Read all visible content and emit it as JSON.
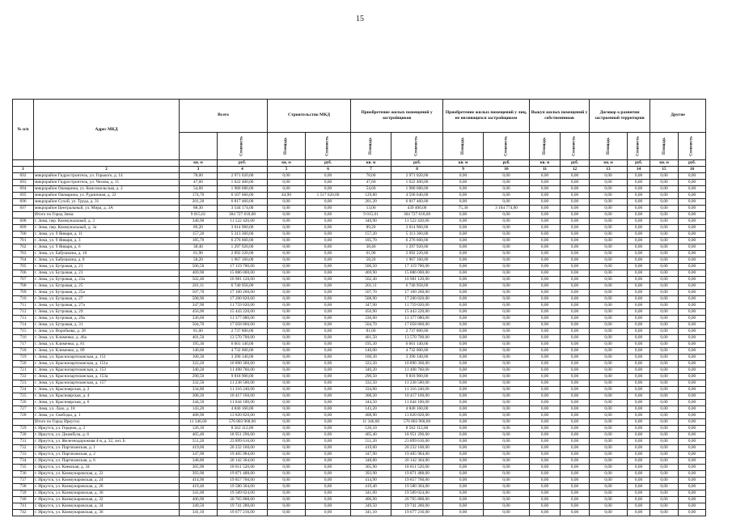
{
  "page_number": "15",
  "header": {
    "num": "№ п/п",
    "address": "Адрес МКД",
    "groups": [
      "Всего",
      "Строительство МКД",
      "Приобретение жилых помещений у застройщиков",
      "Приобретение жилых помещений у лиц, не являющихся застройщиком",
      "Выкуп жилых помещений у собственников",
      "Договор о развитии застроенной территории",
      "Другие"
    ],
    "sub": [
      "Расселяемая площадь жилых помещений",
      "Стоимость",
      "Площадь",
      "Стоимость",
      "Площадь",
      "Стоимость",
      "Площадь",
      "Стоимость",
      "Площадь",
      "Стоимость",
      "Площадь",
      "Стоимость",
      "Площадь",
      "Стоимость"
    ],
    "units": [
      "кв. м",
      "руб.",
      "кв. м",
      "руб.",
      "кв. м",
      "руб.",
      "кв. м",
      "руб.",
      "кв. м",
      "руб.",
      "кв. м",
      "руб.",
      "кв. м",
      "руб."
    ],
    "index": [
      "1",
      "2",
      "3",
      "4",
      "5",
      "6",
      "7",
      "8",
      "9",
      "10",
      "11",
      "12",
      "13",
      "14",
      "15",
      "16"
    ]
  },
  "table": {
    "rows": [
      [
        "692",
        "микрорайон Гидростроитель, ул. Горького, д. 14",
        "78,00",
        "2 971 020,00",
        "0,00",
        "0,00",
        "78,00",
        "2 971 020,00",
        "0,00",
        "0,00",
        "0,00",
        "0,00",
        "0,00",
        "0,00",
        "0,00",
        "0,00"
      ],
      [
        "693",
        "микрорайон Гидростроитель, ул. Чехова, д. 11",
        "47,60",
        "1 622 400,00",
        "0,00",
        "0,00",
        "47,60",
        "1 622 400,00",
        "0,00",
        "0,00",
        "0,00",
        "0,00",
        "0,00",
        "0,00",
        "0,00",
        "0,00"
      ],
      [
        "694",
        "микрорайон Ошмарина, ул. Комсомольская, д. 2",
        "54,60",
        "1 980 680,00",
        "0,00",
        "0,00",
        "54,60",
        "1 980 680,00",
        "0,00",
        "0,00",
        "0,00",
        "0,00",
        "0,00",
        "0,00",
        "0,00",
        "0,00"
      ],
      [
        "695",
        "микрорайон Ошмарина, ул. Рудничная, д. 22",
        "174,70",
        "6 107 660,00",
        "44,90",
        "1 517 620,00",
        "129,80",
        "4 590 040,00",
        "0,00",
        "0,00",
        "0,00",
        "0,00",
        "0,00",
        "0,00",
        "0,00",
        "0,00"
      ],
      [
        "696",
        "микрорайон Сухой, ул. Труда, д. 31",
        "201,20",
        "6 817 460,00",
        "0,00",
        "0,00",
        "201,20",
        "6 817 460,00",
        "0,00",
        "0,00",
        "0,00",
        "0,00",
        "0,00",
        "0,00",
        "0,00",
        "0,00"
      ],
      [
        "697",
        "микрорайон Центральный, ул. Мира, д. 3А",
        "88,30",
        "3 544 174,00",
        "0,00",
        "0,00",
        "13,00",
        "439 400,00",
        "75,30",
        "3 104 774,00",
        "0,00",
        "0,00",
        "0,00",
        "0,00",
        "0,00",
        "0,00"
      ],
      [
        "",
        "Итого по Город Зима:",
        "9 015,61",
        "304 727 618,00",
        "0,00",
        "0,00",
        "9 015,61",
        "304 727 618,00",
        "0,00",
        "0,00",
        "0,00",
        "0,00",
        "0,00",
        "0,00",
        "0,00",
        "0,00"
      ],
      [
        "698",
        "г. Зима, пер. Коммунальный, д. 3",
        "340,90",
        "11 522 420,00",
        "0,00",
        "0,00",
        "340,90",
        "11 522 420,00",
        "0,00",
        "0,00",
        "0,00",
        "0,00",
        "0,00",
        "0,00",
        "0,00",
        "0,00"
      ],
      [
        "699",
        "г. Зима, пер. Коммунальный, д. 3а",
        "89,20",
        "3 014 960,00",
        "0,00",
        "0,00",
        "89,20",
        "3 014 960,00",
        "0,00",
        "0,00",
        "0,00",
        "0,00",
        "0,00",
        "0,00",
        "0,00",
        "0,00"
      ],
      [
        "700",
        "г. Зима, ул. 9 Января, д. 11",
        "157,20",
        "5 313 360,00",
        "0,00",
        "0,00",
        "157,20",
        "5 313 360,00",
        "0,00",
        "0,00",
        "0,00",
        "0,00",
        "0,00",
        "0,00",
        "0,00",
        "0,00"
      ],
      [
        "701",
        "г. Зима, ул. 9 Января, д. 3",
        "185,70",
        "6 276 660,00",
        "0,00",
        "0,00",
        "185,70",
        "6 276 660,00",
        "0,00",
        "0,00",
        "0,00",
        "0,00",
        "0,00",
        "0,00",
        "0,00",
        "0,00"
      ],
      [
        "702",
        "г. Зима, ул. 9 Января, д. 6",
        "38,40",
        "1 297 920,00",
        "0,00",
        "0,00",
        "38,40",
        "1 297 920,00",
        "0,00",
        "0,00",
        "0,00",
        "0,00",
        "0,00",
        "0,00",
        "0,00",
        "0,00"
      ],
      [
        "703",
        "г. Зима, ул. Бабушкина, д. 10",
        "61,90",
        "2 092 220,00",
        "0,00",
        "0,00",
        "61,90",
        "2 092 220,00",
        "0,00",
        "0,00",
        "0,00",
        "0,00",
        "0,00",
        "0,00",
        "0,00",
        "0,00"
      ],
      [
        "704",
        "г. Зима, ул. Бабушкина, д. 8",
        "58,20",
        "1 967 160,00",
        "0,00",
        "0,00",
        "58,20",
        "1 967 160,00",
        "0,00",
        "0,00",
        "0,00",
        "0,00",
        "0,00",
        "0,00",
        "0,00",
        "0,00"
      ],
      [
        "705",
        "г. Зима, ул. Бутровая, д. 21",
        "506,50",
        "17 119 700,00",
        "0,00",
        "0,00",
        "506,50",
        "17 119 700,00",
        "0,00",
        "0,00",
        "0,00",
        "0,00",
        "0,00",
        "0,00",
        "0,00",
        "0,00"
      ],
      [
        "706",
        "г. Зима, ул. Бутровая, д. 23",
        "469,90",
        "15 886 000,00",
        "0,00",
        "0,00",
        "469,90",
        "15 886 000,00",
        "0,00",
        "0,00",
        "0,00",
        "0,00",
        "0,00",
        "0,00",
        "0,00",
        "0,00"
      ],
      [
        "707",
        "г. Зима, ул. Бутровая, д. 23а",
        "502,40",
        "16 981 120,00",
        "0,00",
        "0,00",
        "502,40",
        "16 981 120,00",
        "0,00",
        "0,00",
        "0,00",
        "0,00",
        "0,00",
        "0,00",
        "0,00",
        "0,00"
      ],
      [
        "708",
        "г. Зима, ул. Бутровая, д. 25",
        "201,11",
        "6 740 958,00",
        "0,00",
        "0,00",
        "201,11",
        "6 740 958,00",
        "0,00",
        "0,00",
        "0,00",
        "0,00",
        "0,00",
        "0,00",
        "0,00",
        "0,00"
      ],
      [
        "709",
        "г. Зима, ул. Бутровая, д. 25а",
        "507,70",
        "17 160 260,00",
        "0,00",
        "0,00",
        "507,70",
        "17 160 260,00",
        "0,00",
        "0,00",
        "0,00",
        "0,00",
        "0,00",
        "0,00",
        "0,00",
        "0,00"
      ],
      [
        "710",
        "г. Зима, ул. Бутровая, д. 27",
        "508,90",
        "17 200 820,00",
        "0,00",
        "0,00",
        "508,90",
        "17 200 820,00",
        "0,00",
        "0,00",
        "0,00",
        "0,00",
        "0,00",
        "0,00",
        "0,00",
        "0,00"
      ],
      [
        "711",
        "г. Зима, ул. Бутровая, д. 27а",
        "347,90",
        "11 759 020,00",
        "0,00",
        "0,00",
        "347,90",
        "11 759 020,00",
        "0,00",
        "0,00",
        "0,00",
        "0,00",
        "0,00",
        "0,00",
        "0,00",
        "0,00"
      ],
      [
        "712",
        "г. Зима, ул. Бутровая, д. 29",
        "456,90",
        "15 443 220,00",
        "0,00",
        "0,00",
        "456,90",
        "15 443 220,00",
        "0,00",
        "0,00",
        "0,00",
        "0,00",
        "0,00",
        "0,00",
        "0,00",
        "0,00"
      ],
      [
        "713",
        "г. Зима, ул. Бутровая, д. 29а",
        "336,60",
        "11 377 080,00",
        "0,00",
        "0,00",
        "336,60",
        "11 377 080,00",
        "0,00",
        "0,00",
        "0,00",
        "0,00",
        "0,00",
        "0,00",
        "0,00",
        "0,00"
      ],
      [
        "714",
        "г. Зима, ул. Бутровая, д. 31",
        "504,70",
        "17 058 860,00",
        "0,00",
        "0,00",
        "504,70",
        "17 058 860,00",
        "0,00",
        "0,00",
        "0,00",
        "0,00",
        "0,00",
        "0,00",
        "0,00",
        "0,00"
      ],
      [
        "715",
        "г. Зима, ул. Воробьева, д. 28",
        "81,00",
        "2 737 800,00",
        "0,00",
        "0,00",
        "81,00",
        "2 737 800,00",
        "0,00",
        "0,00",
        "0,00",
        "0,00",
        "0,00",
        "0,00",
        "0,00",
        "0,00"
      ],
      [
        "716",
        "г. Зима, ул. Клименко, д. 46а",
        "401,50",
        "13 570 700,00",
        "0,00",
        "0,00",
        "401,50",
        "13 570 700,00",
        "0,00",
        "0,00",
        "0,00",
        "0,00",
        "0,00",
        "0,00",
        "0,00",
        "0,00"
      ],
      [
        "717",
        "г. Зима, ул. Клименко, д. 81",
        "195,30",
        "6 601 140,00",
        "0,00",
        "0,00",
        "195,30",
        "6 601 140,00",
        "0,00",
        "0,00",
        "0,00",
        "0,00",
        "0,00",
        "0,00",
        "0,00",
        "0,00"
      ],
      [
        "718",
        "г. Зима, ул. Клименко, д. 89",
        "140,00",
        "4 732 000,00",
        "0,00",
        "0,00",
        "140,00",
        "4 732 000,00",
        "0,00",
        "0,00",
        "0,00",
        "0,00",
        "0,00",
        "0,00",
        "0,00",
        "0,00"
      ],
      [
        "719",
        "г. Зима, ул. Краснопартизанская, д. 151",
        "100,30",
        "3 390 140,00",
        "0,00",
        "0,00",
        "100,30",
        "3 390 140,00",
        "0,00",
        "0,00",
        "0,00",
        "0,00",
        "0,00",
        "0,00",
        "0,00",
        "0,00"
      ],
      [
        "720",
        "г. Зима, ул. Краснопартизанская, д. 151а",
        "322,20",
        "10 890 360,00",
        "0,00",
        "0,00",
        "322,20",
        "10 890 360,00",
        "0,00",
        "0,00",
        "0,00",
        "0,00",
        "0,00",
        "0,00",
        "0,00",
        "0,00"
      ],
      [
        "721",
        "г. Зима, ул. Краснопартизанская, д. 153",
        "340,20",
        "11 498 760,00",
        "0,00",
        "0,00",
        "340,20",
        "11 498 760,00",
        "0,00",
        "0,00",
        "0,00",
        "0,00",
        "0,00",
        "0,00",
        "0,00",
        "0,00"
      ],
      [
        "722",
        "г. Зима, ул. Краснопартизанская, д. 153а",
        "290,50",
        "9 818 900,00",
        "0,00",
        "0,00",
        "290,50",
        "9 818 900,00",
        "0,00",
        "0,00",
        "0,00",
        "0,00",
        "0,00",
        "0,00",
        "0,00",
        "0,00"
      ],
      [
        "723",
        "г. Зима, ул. Краснопартизанская, д. 157",
        "332,50",
        "11 238 500,00",
        "0,00",
        "0,00",
        "332,50",
        "11 238 500,00",
        "0,00",
        "0,00",
        "0,00",
        "0,00",
        "0,00",
        "0,00",
        "0,00",
        "0,00"
      ],
      [
        "724",
        "г. Зима, ул. Красноярская, д. 2",
        "334,80",
        "11 316 240,00",
        "0,00",
        "0,00",
        "334,80",
        "11 316 240,00",
        "0,00",
        "0,00",
        "0,00",
        "0,00",
        "0,00",
        "0,00",
        "0,00",
        "0,00"
      ],
      [
        "725",
        "г. Зима, ул. Красноярская, д. 4",
        "308,20",
        "10 417 160,00",
        "0,00",
        "0,00",
        "308,20",
        "10 417 160,00",
        "0,00",
        "0,00",
        "0,00",
        "0,00",
        "0,00",
        "0,00",
        "0,00",
        "0,00"
      ],
      [
        "726",
        "г. Зима, ул. Красноярская, д. 6",
        "344,50",
        "11 644 100,00",
        "0,00",
        "0,00",
        "344,50",
        "11 644 100,00",
        "0,00",
        "0,00",
        "0,00",
        "0,00",
        "0,00",
        "0,00",
        "0,00",
        "0,00"
      ],
      [
        "727",
        "г. Зима, ул. Лазо, д. 18",
        "143,20",
        "4 840 160,00",
        "0,00",
        "0,00",
        "143,20",
        "4 840 160,00",
        "0,00",
        "0,00",
        "0,00",
        "0,00",
        "0,00",
        "0,00",
        "0,00",
        "0,00"
      ],
      [
        "728",
        "г. Зима, ул. Свободы, д. 1",
        "408,90",
        "13 820 820,00",
        "0,00",
        "0,00",
        "408,90",
        "13 820 820,00",
        "0,00",
        "0,00",
        "0,00",
        "0,00",
        "0,00",
        "0,00",
        "0,00",
        "0,00"
      ],
      [
        "",
        "Итого по Город Иркутск:",
        "11 346,60",
        "576 803 968,00",
        "0,00",
        "0,00",
        "11 346,60",
        "576 803 968,00",
        "0,00",
        "0,00",
        "0,00",
        "0,00",
        "0,00",
        "0,00",
        "0,00",
        "0,00"
      ],
      [
        "729",
        "г. Иркутск, ул. Герцена, д. 2",
        "126,10",
        "8 562 112,00",
        "0,00",
        "0,00",
        "126,10",
        "8 562 112,00",
        "0,00",
        "0,00",
        "0,00",
        "0,00",
        "0,00",
        "0,00",
        "0,00",
        "0,00"
      ],
      [
        "730",
        "г. Иркутск, ул. Джамбула, д. 6",
        "405,40",
        "18 951 296,00",
        "0,00",
        "0,00",
        "405,40",
        "18 951 296,00",
        "0,00",
        "0,00",
        "0,00",
        "0,00",
        "0,00",
        "0,00",
        "0,00",
        "0,00"
      ],
      [
        "731",
        "г. Иркутск, ул. Железнодорожная 4-я, д. 32, лит. Б",
        "551,20",
        "23 899 616,00",
        "0,00",
        "0,00",
        "551,20",
        "23 899 616,00",
        "0,00",
        "0,00",
        "0,00",
        "0,00",
        "0,00",
        "0,00",
        "0,00",
        "0,00"
      ],
      [
        "732",
        "г. Иркутск, ул. Партизанская, д. 1",
        "419,60",
        "20 232 160,00",
        "0,00",
        "0,00",
        "419,60",
        "20 232 160,00",
        "0,00",
        "0,00",
        "0,00",
        "0,00",
        "0,00",
        "0,00",
        "0,00",
        "0,00"
      ],
      [
        "733",
        "г. Иркутск, ул. Партизанская, д. 2",
        "347,90",
        "19 405 984,00",
        "0,00",
        "0,00",
        "347,90",
        "19 405 984,00",
        "0,00",
        "0,00",
        "0,00",
        "0,00",
        "0,00",
        "0,00",
        "0,00",
        "0,00"
      ],
      [
        "734",
        "г. Иркутск, ул. Партизанская, д. 6",
        "348,80",
        "20 142 304,00",
        "0,00",
        "0,00",
        "348,80",
        "20 142 304,00",
        "0,00",
        "0,00",
        "0,00",
        "0,00",
        "0,00",
        "0,00",
        "0,00",
        "0,00"
      ],
      [
        "735",
        "г. Иркутск, ул. Киевская, д. 34",
        "365,90",
        "18 811 520,00",
        "0,00",
        "0,00",
        "365,90",
        "18 811 520,00",
        "0,00",
        "0,00",
        "0,00",
        "0,00",
        "0,00",
        "0,00",
        "0,00",
        "0,00"
      ],
      [
        "736",
        "г. Иркутск, ул. Коммунаровская, д. 22",
        "393,90",
        "19 871 488,00",
        "0,00",
        "0,00",
        "393,90",
        "19 871 488,00",
        "0,00",
        "0,00",
        "0,00",
        "0,00",
        "0,00",
        "0,00",
        "0,00",
        "0,00"
      ],
      [
        "737",
        "г. Иркутск, ул. Коммунаровская, д. 24",
        "414,90",
        "19 857 760,00",
        "0,00",
        "0,00",
        "414,90",
        "19 857 760,00",
        "0,00",
        "0,00",
        "0,00",
        "0,00",
        "0,00",
        "0,00",
        "0,00",
        "0,00"
      ],
      [
        "738",
        "г. Иркутск, ул. Коммунаровская, д. 26",
        "419,40",
        "19 580 304,00",
        "0,00",
        "0,00",
        "419,40",
        "19 580 304,00",
        "0,00",
        "0,00",
        "0,00",
        "0,00",
        "0,00",
        "0,00",
        "0,00",
        "0,00"
      ],
      [
        "739",
        "г. Иркутск, ул. Коммунаровская, д. 30",
        "341,00",
        "19 589 024,00",
        "0,00",
        "0,00",
        "341,00",
        "19 589 024,00",
        "0,00",
        "0,00",
        "0,00",
        "0,00",
        "0,00",
        "0,00",
        "0,00",
        "0,00"
      ],
      [
        "740",
        "г. Иркутск, ул. Коммунаровская, д. 32",
        "406,90",
        "20 765 888,00",
        "0,00",
        "0,00",
        "406,90",
        "20 765 888,00",
        "0,00",
        "0,00",
        "0,00",
        "0,00",
        "0,00",
        "0,00",
        "0,00",
        "0,00"
      ],
      [
        "741",
        "г. Иркутск, ул. Коммунаровская, д. 34",
        "349,50",
        "19 741 280,00",
        "0,00",
        "0,00",
        "349,50",
        "19 741 280,00",
        "0,00",
        "0,00",
        "0,00",
        "0,00",
        "0,00",
        "0,00",
        "0,00",
        "0,00"
      ],
      [
        "742",
        "г. Иркутск, ул. Коммунаровская, д. 36",
        "341,10",
        "19 677 216,00",
        "0,00",
        "0,00",
        "341,10",
        "19 677 216,00",
        "0,00",
        "0,00",
        "0,00",
        "0,00",
        "0,00",
        "0,00",
        "0,00",
        "0,00"
      ]
    ]
  }
}
